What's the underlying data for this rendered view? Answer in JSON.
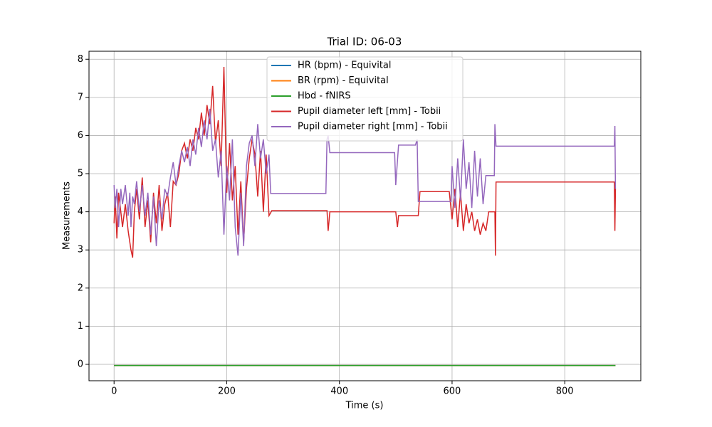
{
  "chart_data": {
    "type": "line",
    "title": "Trial ID: 06-03",
    "xlabel": "Time (s)",
    "ylabel": "Measurements",
    "xlim": [
      -44.5,
      935
    ],
    "ylim": [
      -0.43,
      8.21
    ],
    "xticks": [
      0,
      200,
      400,
      600,
      800
    ],
    "yticks": [
      0,
      1,
      2,
      3,
      4,
      5,
      6,
      7,
      8
    ],
    "grid": true,
    "legend": "upper center",
    "series": [
      {
        "name": "HR (bpm) - Equivital",
        "color": "#1f77b4",
        "x": [
          0,
          890
        ],
        "values": [
          -0.03,
          -0.03
        ]
      },
      {
        "name": "BR (rpm) - Equivital",
        "color": "#ff7f0e",
        "x": [
          0,
          890
        ],
        "values": [
          -0.03,
          -0.03
        ]
      },
      {
        "name": "Hbd - fNIRS",
        "color": "#2ca02c",
        "x": [
          0,
          890
        ],
        "values": [
          -0.03,
          -0.03
        ]
      },
      {
        "name": "Pupil diameter left [mm] - Tobii",
        "color": "#d62728",
        "x": [
          0,
          2,
          5,
          8,
          12,
          15,
          20,
          25,
          28,
          30,
          33,
          36,
          40,
          45,
          50,
          55,
          60,
          65,
          70,
          75,
          80,
          85,
          90,
          95,
          100,
          105,
          110,
          115,
          120,
          125,
          130,
          135,
          140,
          145,
          150,
          155,
          160,
          165,
          170,
          175,
          180,
          185,
          190,
          195,
          200,
          205,
          210,
          215,
          220,
          225,
          230,
          235,
          240,
          245,
          250,
          255,
          260,
          265,
          270,
          275,
          280,
          378,
          380,
          383,
          500,
          503,
          505,
          540,
          543,
          595,
          600,
          605,
          610,
          615,
          620,
          625,
          630,
          635,
          640,
          645,
          650,
          655,
          660,
          665,
          676,
          677,
          678,
          888,
          889,
          890
        ],
        "values": [
          3.7,
          4.4,
          3.3,
          4.5,
          4.0,
          3.6,
          4.2,
          3.5,
          3.2,
          3.0,
          2.8,
          4.0,
          4.6,
          3.8,
          4.9,
          3.6,
          4.3,
          3.2,
          4.5,
          3.7,
          4.7,
          3.5,
          4.2,
          4.5,
          3.6,
          4.8,
          4.7,
          5.0,
          5.6,
          5.8,
          5.4,
          5.9,
          5.6,
          6.2,
          5.9,
          6.6,
          6.0,
          6.8,
          6.3,
          7.3,
          5.8,
          6.4,
          5.2,
          7.8,
          4.5,
          5.8,
          4.3,
          5.2,
          3.4,
          4.8,
          3.2,
          4.6,
          5.4,
          5.9,
          5.5,
          4.4,
          5.6,
          4.0,
          5.5,
          3.9,
          4.03,
          4.03,
          3.5,
          4.0,
          4.0,
          3.6,
          3.9,
          3.9,
          4.53,
          4.53,
          3.8,
          4.6,
          3.6,
          4.5,
          3.5,
          4.2,
          3.7,
          4.0,
          3.5,
          3.8,
          3.4,
          3.7,
          3.5,
          4.0,
          4.0,
          2.85,
          4.78,
          4.78,
          3.5,
          4.6
        ]
      },
      {
        "name": "Pupil diameter right [mm] - Tobii",
        "color": "#9467bd",
        "x": [
          0,
          2,
          5,
          8,
          12,
          15,
          20,
          25,
          28,
          30,
          33,
          36,
          40,
          45,
          50,
          55,
          60,
          65,
          70,
          75,
          80,
          85,
          90,
          95,
          100,
          105,
          110,
          115,
          120,
          125,
          130,
          135,
          140,
          145,
          150,
          155,
          160,
          165,
          170,
          175,
          180,
          185,
          190,
          195,
          200,
          205,
          210,
          215,
          220,
          225,
          230,
          235,
          240,
          245,
          250,
          255,
          260,
          265,
          270,
          275,
          278,
          376,
          378,
          380,
          383,
          498,
          500,
          505,
          535,
          538,
          540,
          598,
          600,
          605,
          610,
          615,
          620,
          625,
          630,
          635,
          640,
          645,
          650,
          655,
          660,
          675,
          676,
          678,
          888,
          889,
          890
        ],
        "values": [
          4.7,
          4.1,
          4.6,
          3.6,
          4.6,
          4.2,
          4.7,
          3.9,
          4.5,
          3.6,
          4.4,
          4.2,
          4.8,
          4.0,
          4.7,
          3.9,
          4.5,
          3.4,
          4.4,
          3.1,
          4.3,
          3.8,
          4.6,
          4.4,
          4.9,
          5.3,
          4.7,
          5.2,
          5.6,
          5.3,
          5.7,
          5.2,
          5.9,
          5.5,
          6.2,
          5.7,
          6.4,
          5.9,
          6.7,
          5.6,
          5.9,
          4.9,
          5.6,
          3.4,
          5.2,
          4.3,
          5.9,
          3.6,
          2.85,
          4.5,
          3.1,
          5.2,
          5.8,
          6.0,
          5.2,
          6.3,
          5.4,
          5.9,
          5.0,
          5.5,
          4.48,
          4.48,
          5.9,
          6.0,
          5.55,
          5.55,
          4.7,
          5.75,
          5.75,
          5.9,
          4.27,
          4.27,
          5.2,
          4.1,
          5.4,
          4.3,
          5.9,
          4.6,
          5.3,
          4.1,
          5.6,
          4.4,
          5.4,
          4.2,
          4.95,
          4.95,
          6.3,
          5.72,
          5.72,
          6.25,
          4.6
        ]
      }
    ]
  }
}
